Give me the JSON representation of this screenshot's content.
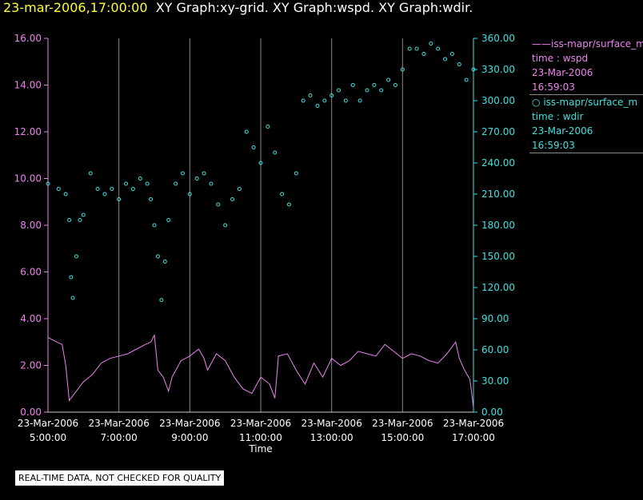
{
  "header": {
    "timestamp": "23-mar-2006,17:00:00",
    "graphs": "XY Graph:xy-grid.  XY Graph:wspd.  XY Graph:wdir."
  },
  "legend": [
    {
      "symbol": "——",
      "name": "iss-mapr/surface_m",
      "line2": "time : wspd",
      "date": "23-Mar-2006",
      "time": "16:59:03",
      "color": "#ee82ee"
    },
    {
      "symbol": "○",
      "name": "iss-mapr/surface_m",
      "line2": "time : wdir",
      "date": "23-Mar-2006",
      "time": "16:59:03",
      "color": "#40e0e0"
    }
  ],
  "footer": {
    "quality": "REAL-TIME DATA, NOT CHECKED FOR QUALITY"
  },
  "chart_data": {
    "type": "line",
    "xlabel": "Time",
    "x_range_hours": [
      5,
      17
    ],
    "x_ticks": [
      {
        "date": "23-Mar-2006",
        "time": "5:00:00"
      },
      {
        "date": "23-Mar-2006",
        "time": "7:00:00"
      },
      {
        "date": "23-Mar-2006",
        "time": "9:00:00"
      },
      {
        "date": "23-Mar-2006",
        "time": "11:00:00"
      },
      {
        "date": "23-Mar-2006",
        "time": "13:00:00"
      },
      {
        "date": "23-Mar-2006",
        "time": "15:00:00"
      },
      {
        "date": "23-Mar-2006",
        "time": "17:00:00"
      }
    ],
    "left_axis": {
      "range": [
        0,
        16
      ],
      "ticks": [
        "0.00",
        "2.00",
        "4.00",
        "6.00",
        "8.00",
        "10.00",
        "12.00",
        "14.00",
        "16.00"
      ],
      "color": "#ee82ee"
    },
    "right_axis": {
      "range": [
        0,
        360
      ],
      "ticks": [
        "0.00",
        "30.00",
        "60.00",
        "90.00",
        "120.00",
        "150.00",
        "180.00",
        "210.00",
        "240.00",
        "270.00",
        "300.00",
        "330.00",
        "360.00"
      ],
      "color": "#40e0e0"
    },
    "grid": "vertical",
    "series": [
      {
        "key": "wspd",
        "style": "line",
        "axis": "left",
        "color": "#ee82ee",
        "x": [
          5.0,
          5.25,
          5.4,
          5.5,
          5.6,
          5.75,
          6.0,
          6.25,
          6.5,
          6.75,
          7.0,
          7.25,
          7.5,
          7.75,
          7.9,
          8.0,
          8.1,
          8.25,
          8.4,
          8.5,
          8.75,
          9.0,
          9.25,
          9.4,
          9.5,
          9.75,
          10.0,
          10.25,
          10.5,
          10.75,
          11.0,
          11.25,
          11.4,
          11.5,
          11.75,
          12.0,
          12.25,
          12.5,
          12.75,
          13.0,
          13.25,
          13.5,
          13.75,
          14.0,
          14.25,
          14.5,
          14.75,
          15.0,
          15.25,
          15.5,
          15.75,
          16.0,
          16.25,
          16.4,
          16.5,
          16.6,
          16.75,
          16.9,
          17.0
        ],
        "y": [
          3.2,
          3.0,
          2.9,
          2.0,
          0.5,
          0.8,
          1.3,
          1.6,
          2.1,
          2.3,
          2.4,
          2.5,
          2.7,
          2.9,
          3.0,
          3.3,
          1.8,
          1.5,
          0.9,
          1.5,
          2.2,
          2.4,
          2.7,
          2.3,
          1.8,
          2.5,
          2.2,
          1.5,
          1.0,
          0.8,
          1.5,
          1.2,
          0.6,
          2.4,
          2.5,
          1.8,
          1.2,
          2.1,
          1.5,
          2.3,
          2.0,
          2.2,
          2.6,
          2.5,
          2.4,
          2.9,
          2.6,
          2.3,
          2.5,
          2.4,
          2.2,
          2.1,
          2.5,
          2.8,
          3.0,
          2.3,
          1.8,
          1.4,
          0.2
        ]
      },
      {
        "key": "wdir",
        "style": "markers",
        "axis": "right",
        "color": "#40e0e0",
        "x": [
          5.0,
          5.3,
          5.5,
          5.6,
          5.65,
          5.7,
          5.8,
          5.9,
          6.0,
          6.2,
          6.4,
          6.6,
          6.8,
          7.0,
          7.2,
          7.4,
          7.6,
          7.8,
          7.9,
          8.0,
          8.1,
          8.2,
          8.3,
          8.4,
          8.6,
          8.8,
          9.0,
          9.2,
          9.4,
          9.6,
          9.8,
          10.0,
          10.2,
          10.4,
          10.6,
          10.8,
          11.0,
          11.2,
          11.4,
          11.6,
          11.8,
          12.0,
          12.2,
          12.4,
          12.6,
          12.8,
          13.0,
          13.2,
          13.4,
          13.6,
          13.8,
          14.0,
          14.2,
          14.4,
          14.6,
          14.8,
          15.0,
          15.2,
          15.4,
          15.6,
          15.8,
          16.0,
          16.2,
          16.4,
          16.6,
          16.8,
          17.0
        ],
        "y": [
          220,
          215,
          210,
          185,
          130,
          110,
          150,
          185,
          190,
          230,
          215,
          210,
          215,
          205,
          220,
          215,
          225,
          220,
          205,
          180,
          150,
          108,
          145,
          185,
          220,
          230,
          210,
          225,
          230,
          220,
          200,
          180,
          205,
          215,
          270,
          255,
          240,
          275,
          250,
          210,
          200,
          230,
          300,
          305,
          295,
          300,
          305,
          310,
          300,
          315,
          300,
          310,
          315,
          310,
          320,
          315,
          330,
          350,
          350,
          345,
          355,
          350,
          340,
          345,
          335,
          320,
          330
        ]
      }
    ]
  }
}
